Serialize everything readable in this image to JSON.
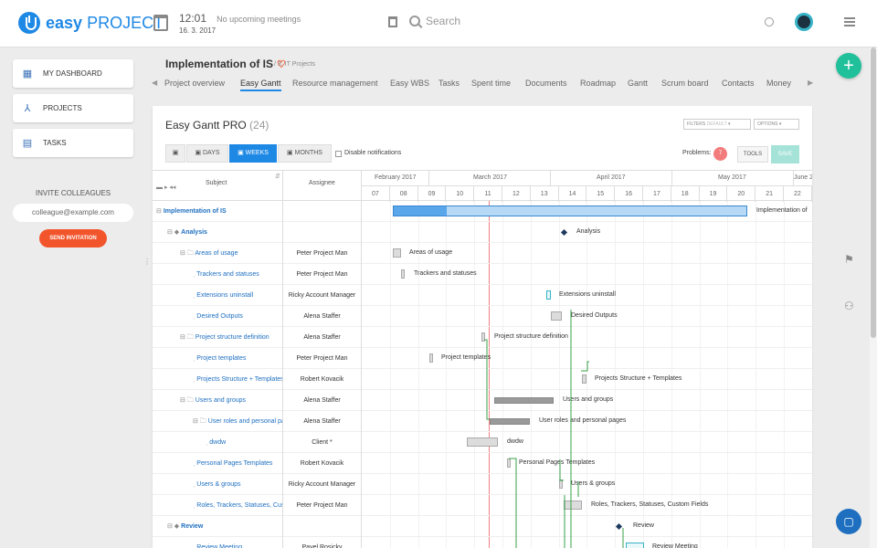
{
  "app": {
    "logo_main": "easy",
    "logo_sub": "PROJECT"
  },
  "header": {
    "time": "12:01",
    "meetings": "No upcoming meetings",
    "date": "16. 3. 2017",
    "search_placeholder": "Search"
  },
  "sidebar": {
    "items": [
      {
        "label": "MY DASHBOARD",
        "icon": "grid-icon"
      },
      {
        "label": "PROJECTS",
        "icon": "network-icon"
      },
      {
        "label": "TASKS",
        "icon": "clipboard-icon"
      }
    ],
    "invite_title": "INVITE COLLEAGUES",
    "email_placeholder": "colleague@example.com",
    "send_label": "SEND INVITATION"
  },
  "project": {
    "title": "Implementation of IS",
    "crumb": "/ 3. IT Projects",
    "tabs": [
      "Project overview",
      "Easy Gantt",
      "Resource management",
      "Easy WBS",
      "Tasks",
      "Spent time",
      "Documents",
      "Roadmap",
      "Gantt",
      "Scrum board",
      "Contacts",
      "Money"
    ],
    "active_tab": "Easy Gantt"
  },
  "gantt": {
    "title": "Easy Gantt PRO",
    "count": "(24)",
    "filters": "FILTERS",
    "filters_sub": "DEFAULT",
    "options": "OPTIONS",
    "zoom": {
      "days": "DAYS",
      "weeks": "WEEKS",
      "months": "MONTHS"
    },
    "disable_notifications": "Disable notifications",
    "problems_label": "Problems:",
    "problems_count": "7",
    "tools": "TOOLS",
    "save": "SAVE",
    "col_subject": "Subject",
    "col_assignee": "Assignee",
    "months": [
      "February 2017",
      "March 2017",
      "April 2017",
      "May 2017",
      "June 2"
    ],
    "weeks": [
      "07",
      "08",
      "09",
      "10",
      "11",
      "12",
      "13",
      "14",
      "15",
      "16",
      "17",
      "18",
      "19",
      "20",
      "21",
      "22"
    ],
    "rows": [
      {
        "subject": "Implementation of IS",
        "assignee": "",
        "bar_label": "Implementation of"
      },
      {
        "subject": "Analysis",
        "assignee": "",
        "bar_label": "Analysis"
      },
      {
        "subject": "Areas of usage",
        "assignee": "Peter Project Man",
        "bar_label": "Areas of usage"
      },
      {
        "subject": "Trackers and statuses",
        "assignee": "Peter Project Man",
        "bar_label": "Trackers and statuses"
      },
      {
        "subject": "Extensions uninstall",
        "assignee": "Ricky Account Manager",
        "bar_label": "Extensions uninstall"
      },
      {
        "subject": "Desired Outputs",
        "assignee": "Alena Staffer",
        "bar_label": "Desired Outputs"
      },
      {
        "subject": "Project structure definition",
        "assignee": "Alena Staffer",
        "bar_label": "Project structure definition"
      },
      {
        "subject": "Project templates",
        "assignee": "Peter Project Man",
        "bar_label": "Project templates"
      },
      {
        "subject": "Projects Structure + Templates",
        "assignee": "Robert Kovacik",
        "bar_label": "Projects Structure + Templates"
      },
      {
        "subject": "Users and groups",
        "assignee": "Alena Staffer",
        "bar_label": "Users and groups"
      },
      {
        "subject": "User roles and personal pages",
        "assignee": "Alena Staffer",
        "bar_label": "User roles and personal pages"
      },
      {
        "subject": "dwdw",
        "assignee": "Client *",
        "bar_label": "dwdw"
      },
      {
        "subject": "Personal Pages Templates",
        "assignee": "Robert Kovacik",
        "bar_label": "Personal Pages Templates"
      },
      {
        "subject": "Users & groups",
        "assignee": "Ricky Account Manager",
        "bar_label": "Users & groups"
      },
      {
        "subject": "Roles, Trackers, Statuses, Custom Fields",
        "assignee": "Peter Project Man",
        "bar_label": "Roles, Trackers, Statuses, Custom Fields"
      },
      {
        "subject": "Review",
        "assignee": "",
        "bar_label": "Review"
      },
      {
        "subject": "Review Meeting",
        "assignee": "Pavel Rosicky",
        "bar_label": "Review Meeting"
      }
    ]
  }
}
